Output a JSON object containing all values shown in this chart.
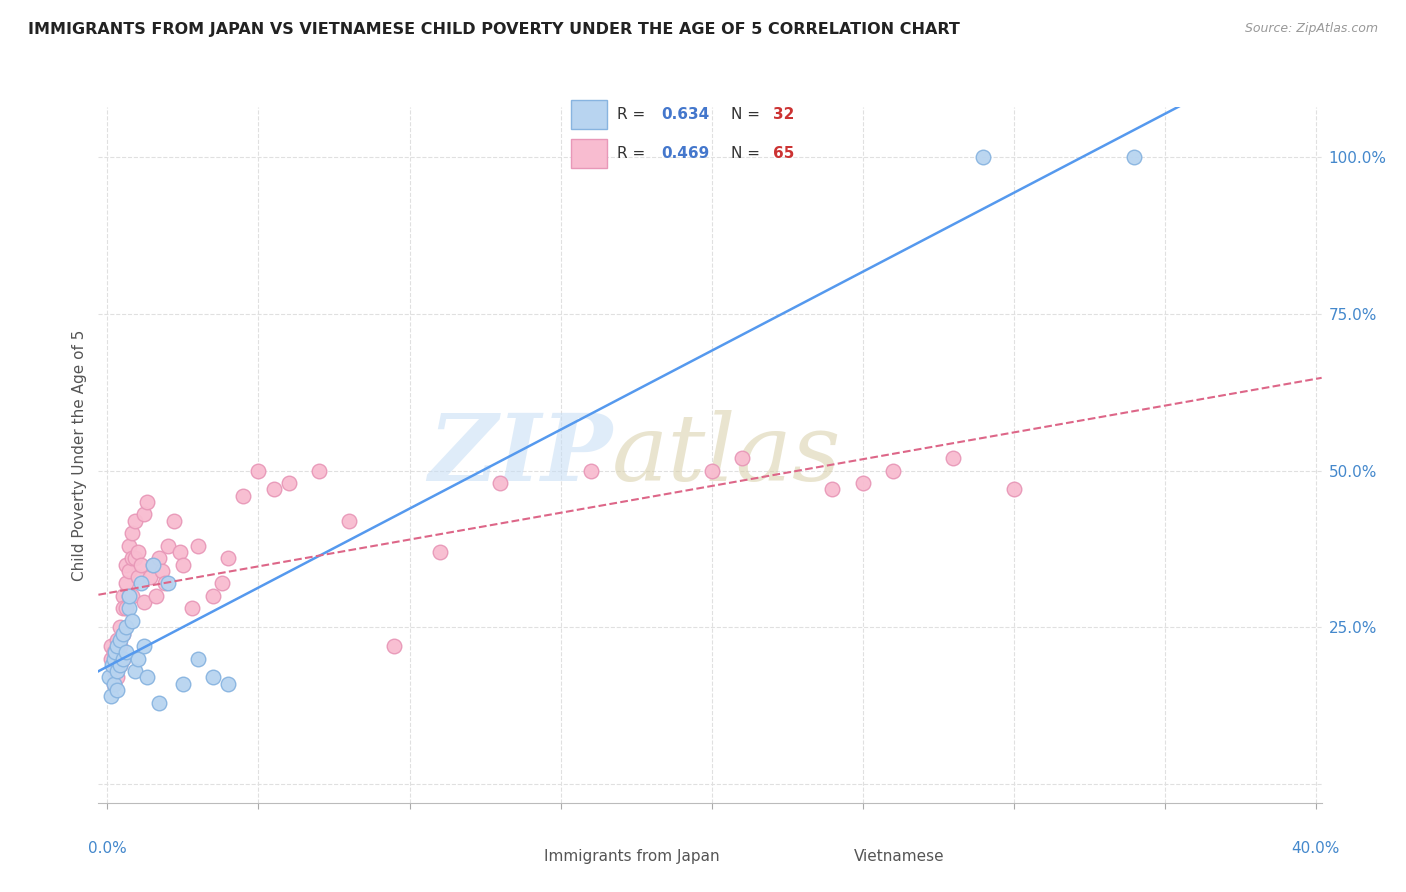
{
  "title": "IMMIGRANTS FROM JAPAN VS VIETNAMESE CHILD POVERTY UNDER THE AGE OF 5 CORRELATION CHART",
  "source": "Source: ZipAtlas.com",
  "ylabel_label": "Child Poverty Under the Age of 5",
  "xlim": [
    -0.003,
    0.402
  ],
  "ylim": [
    -0.03,
    1.08
  ],
  "xticks": [
    0.0,
    0.05,
    0.1,
    0.15,
    0.2,
    0.25,
    0.3,
    0.35,
    0.4
  ],
  "yticks": [
    0.0,
    0.25,
    0.5,
    0.75,
    1.0
  ],
  "ytick_labels": [
    "",
    "25.0%",
    "50.0%",
    "75.0%",
    "100.0%"
  ],
  "japan_color": "#b8d4f0",
  "japan_edge_color": "#88b4e0",
  "vietnamese_color": "#f8bcd0",
  "vietnamese_edge_color": "#e898b8",
  "japan_line_color": "#5599ee",
  "vietnamese_line_color": "#dd6688",
  "background_color": "#ffffff",
  "grid_color": "#e0e0e0",
  "legend_R_color": "#4477cc",
  "legend_N_color": "#cc3333",
  "japan_R": "0.634",
  "japan_N": "32",
  "vietnamese_R": "0.469",
  "vietnamese_N": "65",
  "japan_scatter_x": [
    0.0005,
    0.001,
    0.0015,
    0.002,
    0.002,
    0.0025,
    0.003,
    0.003,
    0.003,
    0.004,
    0.004,
    0.005,
    0.005,
    0.006,
    0.006,
    0.007,
    0.007,
    0.008,
    0.009,
    0.01,
    0.011,
    0.012,
    0.013,
    0.015,
    0.017,
    0.02,
    0.025,
    0.03,
    0.035,
    0.04,
    0.29,
    0.34
  ],
  "japan_scatter_y": [
    0.17,
    0.14,
    0.19,
    0.16,
    0.2,
    0.21,
    0.18,
    0.22,
    0.15,
    0.23,
    0.19,
    0.2,
    0.24,
    0.25,
    0.21,
    0.28,
    0.3,
    0.26,
    0.18,
    0.2,
    0.32,
    0.22,
    0.17,
    0.35,
    0.13,
    0.32,
    0.16,
    0.2,
    0.17,
    0.16,
    1.0,
    1.0
  ],
  "viet_scatter_x": [
    0.001,
    0.001,
    0.002,
    0.002,
    0.002,
    0.003,
    0.003,
    0.003,
    0.003,
    0.004,
    0.004,
    0.004,
    0.005,
    0.005,
    0.005,
    0.005,
    0.006,
    0.006,
    0.006,
    0.007,
    0.007,
    0.007,
    0.008,
    0.008,
    0.008,
    0.009,
    0.009,
    0.01,
    0.01,
    0.011,
    0.012,
    0.012,
    0.013,
    0.014,
    0.015,
    0.016,
    0.017,
    0.018,
    0.019,
    0.02,
    0.022,
    0.024,
    0.025,
    0.028,
    0.03,
    0.035,
    0.038,
    0.04,
    0.045,
    0.05,
    0.055,
    0.06,
    0.07,
    0.08,
    0.095,
    0.11,
    0.13,
    0.16,
    0.2,
    0.21,
    0.24,
    0.25,
    0.26,
    0.28,
    0.3
  ],
  "viet_scatter_y": [
    0.2,
    0.22,
    0.18,
    0.21,
    0.16,
    0.23,
    0.2,
    0.19,
    0.17,
    0.25,
    0.22,
    0.19,
    0.3,
    0.28,
    0.24,
    0.2,
    0.35,
    0.32,
    0.28,
    0.38,
    0.34,
    0.3,
    0.4,
    0.36,
    0.3,
    0.42,
    0.36,
    0.37,
    0.33,
    0.35,
    0.29,
    0.43,
    0.45,
    0.33,
    0.35,
    0.3,
    0.36,
    0.34,
    0.32,
    0.38,
    0.42,
    0.37,
    0.35,
    0.28,
    0.38,
    0.3,
    0.32,
    0.36,
    0.46,
    0.5,
    0.47,
    0.48,
    0.5,
    0.42,
    0.22,
    0.37,
    0.48,
    0.5,
    0.5,
    0.52,
    0.47,
    0.48,
    0.5,
    0.52,
    0.47
  ]
}
